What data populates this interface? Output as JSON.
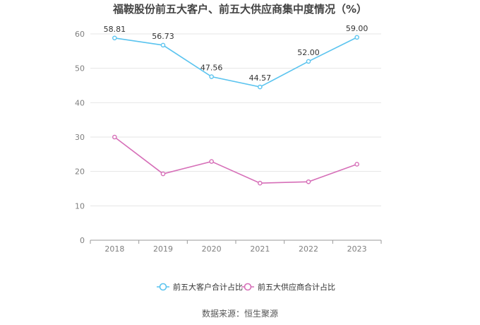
{
  "chart_data": {
    "type": "line",
    "title": "福鞍股份前五大客户、前五大供应商集中度情况（%）",
    "categories": [
      "2018",
      "2019",
      "2020",
      "2021",
      "2022",
      "2023"
    ],
    "ylim": [
      0,
      60
    ],
    "yticks": [
      0,
      10,
      20,
      30,
      40,
      50,
      60
    ],
    "grid": true,
    "legend_position": "bottom",
    "series": [
      {
        "name": "前五大客户合计占比",
        "color": "#5bc4ef",
        "values": [
          58.81,
          56.73,
          47.56,
          44.57,
          52.0,
          59.0
        ],
        "labels": [
          "58.81",
          "56.73",
          "47.56",
          "44.57",
          "52.00",
          "59.00"
        ]
      },
      {
        "name": "前五大供应商合计占比",
        "color": "#d66fb8",
        "values": [
          30.0,
          19.3,
          22.9,
          16.6,
          17.0,
          22.1
        ]
      }
    ]
  },
  "source": "数据来源：恒生聚源"
}
